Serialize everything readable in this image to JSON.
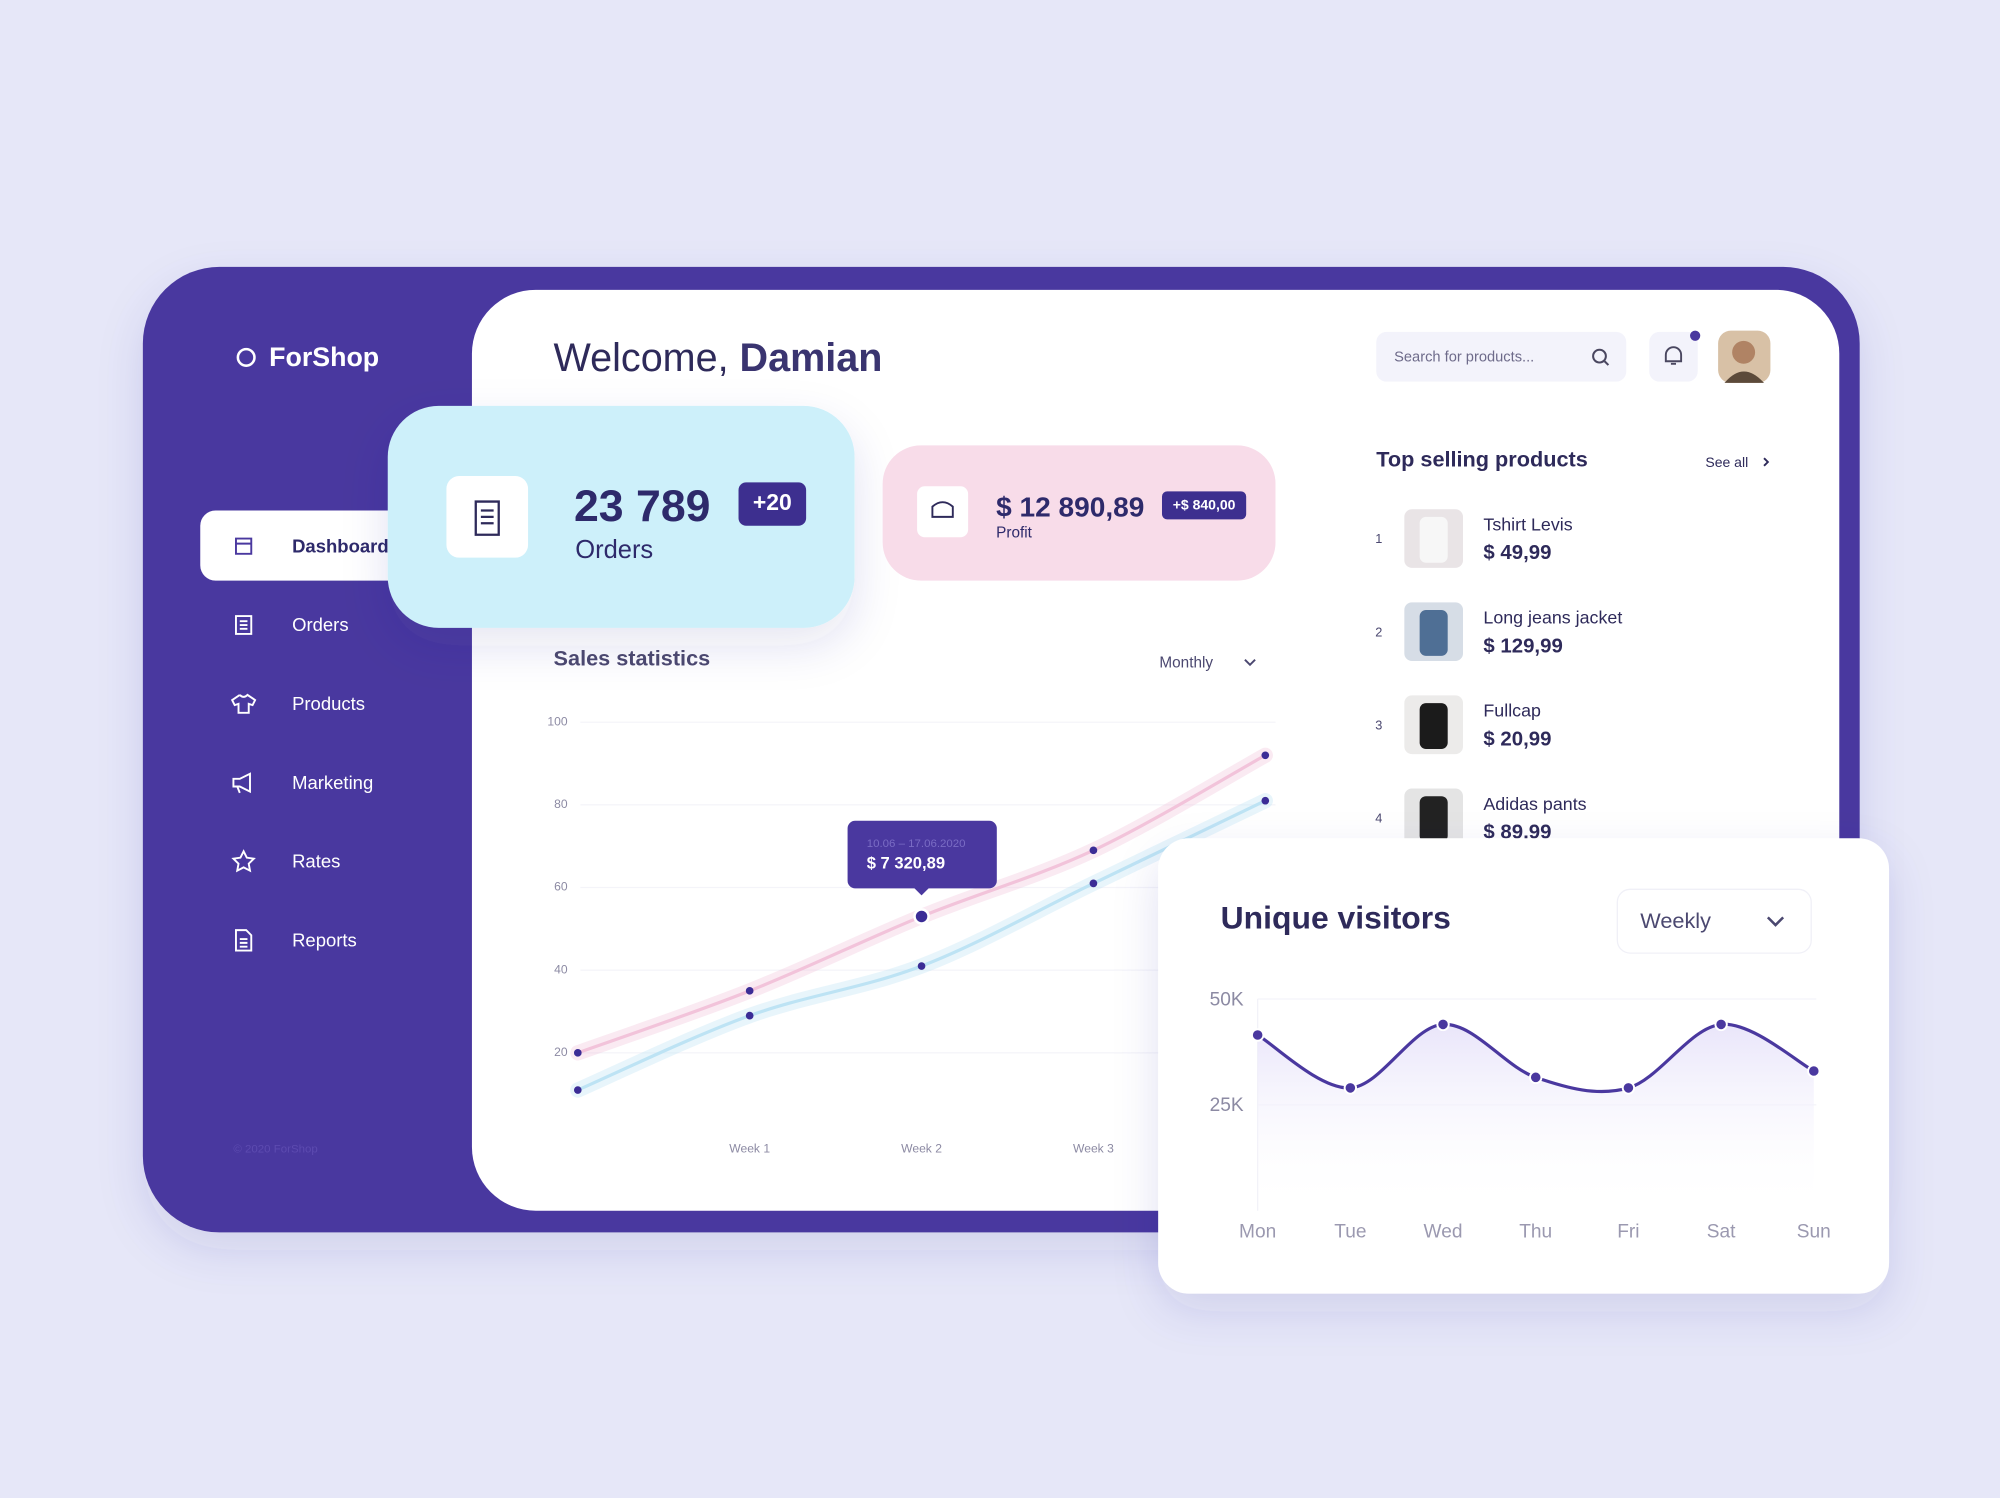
{
  "brand": "ForShop",
  "nav": [
    "Dashboard",
    "Orders",
    "Products",
    "Marketing",
    "Rates",
    "Reports"
  ],
  "footer": "© 2020 ForShop",
  "header": {
    "greeting": "Welcome,",
    "name": "Damian",
    "search_placeholder": "Search for products..."
  },
  "stats": {
    "orders": {
      "value": "23 789",
      "badge": "+20",
      "label": "Orders"
    },
    "profit": {
      "value": "$ 12 890,89",
      "badge": "+$ 840,00",
      "label": "Profit"
    }
  },
  "top_products": {
    "title": "Top selling products",
    "see_all": "See all",
    "items": [
      {
        "rank": "1",
        "name": "Tshirt Levis",
        "price": "$ 49,99"
      },
      {
        "rank": "2",
        "name": "Long jeans jacket",
        "price": "$ 129,99"
      },
      {
        "rank": "3",
        "name": "Fullcap",
        "price": "$ 20,99"
      },
      {
        "rank": "4",
        "name": "Adidas pants",
        "price": "$ 89,99"
      }
    ]
  },
  "chart_data": [
    {
      "type": "line",
      "title": "Sales statistics",
      "period": "Monthly",
      "categories": [
        null,
        "Week 1",
        "Week 2",
        "Week 3",
        null
      ],
      "series": [
        {
          "color": "#f2c3da",
          "values": [
            20,
            35,
            53,
            69,
            92
          ]
        },
        {
          "color": "#bde3f4",
          "values": [
            11,
            29,
            41,
            61,
            81
          ]
        }
      ],
      "marker_color": "#3b2c96",
      "ylim": [
        0,
        100
      ],
      "yticks": [
        20,
        40,
        60,
        80,
        100
      ],
      "grid": true,
      "tooltip": {
        "date": "10.06 – 17.06.2020",
        "value": "$ 7 320,89"
      }
    },
    {
      "type": "area",
      "title": "Unique visitors",
      "period": "Weekly",
      "categories": [
        "Mon",
        "Tue",
        "Wed",
        "Thu",
        "Fri",
        "Sat",
        "Sun"
      ],
      "values": [
        41500,
        29000,
        44000,
        31500,
        29000,
        44000,
        33000
      ],
      "color": "#4a389f",
      "ylim": [
        0,
        50000
      ],
      "yticks": [
        {
          "value": 25000,
          "label": "25K"
        },
        {
          "value": 50000,
          "label": "50K"
        }
      ],
      "grid": true
    }
  ]
}
